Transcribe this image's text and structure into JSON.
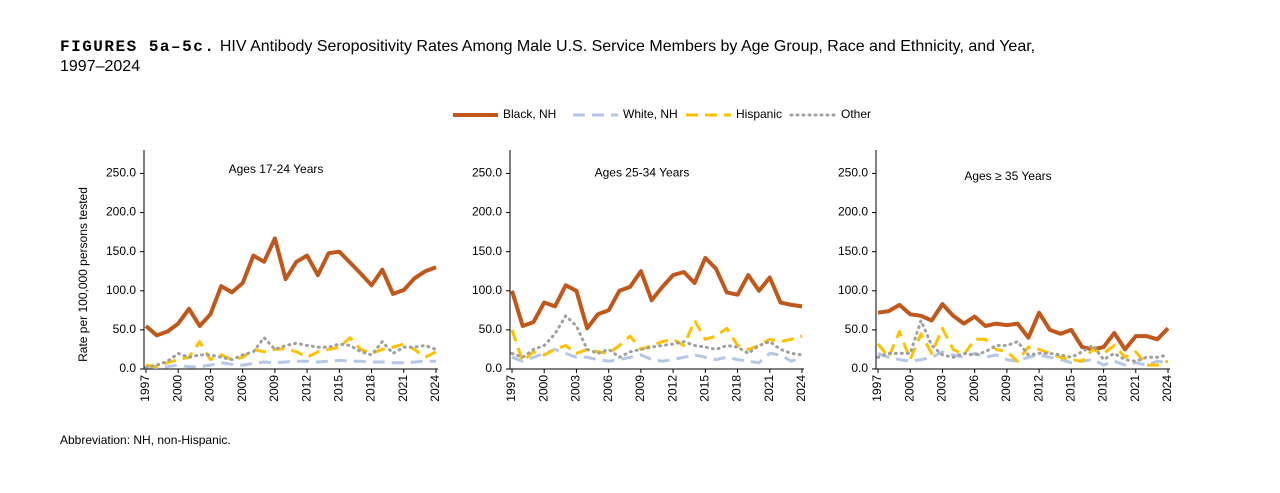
{
  "figure_label": "FIGURES 5a–5c.",
  "title_line_1": "HIV Antibody Seropositivity Rates Among Male U.S. Service Members by Age Group, Race and Ethnicity, and Year,",
  "title_line_2": "1997–2024",
  "footnote": "Abbreviation: NH, non-Hispanic.",
  "chart_data": [
    {
      "type": "line",
      "title": "Ages 17-24 Years",
      "ylabel": "Rate per 100,000 persons tested",
      "x": [
        1997,
        1998,
        1999,
        2000,
        2001,
        2002,
        2003,
        2004,
        2005,
        2006,
        2007,
        2008,
        2009,
        2010,
        2011,
        2012,
        2013,
        2014,
        2015,
        2016,
        2017,
        2018,
        2019,
        2020,
        2021,
        2022,
        2023,
        2024
      ],
      "xlim": [
        1997,
        2024
      ],
      "xticks": [
        1997,
        2000,
        2003,
        2006,
        2009,
        2012,
        2015,
        2018,
        2021,
        2024
      ],
      "ylim": [
        0,
        280
      ],
      "yticks": [
        {
          "value": 0,
          "label": "0.0"
        },
        {
          "value": 50,
          "label": "50.0"
        },
        {
          "value": 100,
          "label": "100.0"
        },
        {
          "value": 150,
          "label": "150.0"
        },
        {
          "value": 200,
          "label": "200.0"
        },
        {
          "value": 250,
          "label": "250.0"
        }
      ],
      "series": [
        {
          "name": "Black, NH",
          "color": "#c0571b",
          "line_style": "solid",
          "values": [
            55,
            43,
            48,
            58,
            77,
            55,
            70,
            106,
            98,
            110,
            145,
            137,
            167,
            115,
            137,
            145,
            120,
            148,
            150,
            136,
            122,
            107,
            127,
            96,
            101,
            116,
            125,
            130
          ]
        },
        {
          "name": "White, NH",
          "color": "#b4c7e7",
          "line_style": "dashed",
          "values": [
            3,
            2,
            3,
            5,
            3,
            3,
            5,
            8,
            6,
            5,
            7,
            9,
            8,
            9,
            10,
            10,
            9,
            10,
            11,
            10,
            10,
            9,
            9,
            8,
            8,
            9,
            10,
            10
          ]
        },
        {
          "name": "Hispanic",
          "color": "#ffc000",
          "line_style": "dashed",
          "values": [
            5,
            3,
            8,
            12,
            15,
            35,
            12,
            18,
            12,
            15,
            25,
            22,
            25,
            26,
            22,
            15,
            22,
            25,
            28,
            40,
            25,
            20,
            25,
            28,
            32,
            25,
            15,
            22
          ]
        },
        {
          "name": "Other",
          "color": "#a0a0a0",
          "line_style": "dotted",
          "values": [
            2,
            5,
            10,
            20,
            15,
            18,
            18,
            15,
            12,
            18,
            22,
            40,
            25,
            30,
            33,
            30,
            28,
            28,
            32,
            30,
            22,
            18,
            35,
            20,
            28,
            28,
            30,
            25
          ]
        }
      ]
    },
    {
      "type": "line",
      "title": "Ages 25-34 Years",
      "x": [
        1997,
        1998,
        1999,
        2000,
        2001,
        2002,
        2003,
        2004,
        2005,
        2006,
        2007,
        2008,
        2009,
        2010,
        2011,
        2012,
        2013,
        2014,
        2015,
        2016,
        2017,
        2018,
        2019,
        2020,
        2021,
        2022,
        2023,
        2024
      ],
      "xlim": [
        1997,
        2024
      ],
      "xticks": [
        1997,
        2000,
        2003,
        2006,
        2009,
        2012,
        2015,
        2018,
        2021,
        2024
      ],
      "ylim": [
        0,
        280
      ],
      "yticks": [
        {
          "value": 0,
          "label": "0.0"
        },
        {
          "value": 50,
          "label": "50.0"
        },
        {
          "value": 100,
          "label": "100.0"
        },
        {
          "value": 150,
          "label": "150.0"
        },
        {
          "value": 200,
          "label": "200.0"
        },
        {
          "value": 250,
          "label": "250.0"
        }
      ],
      "series": [
        {
          "name": "Black, NH",
          "color": "#c0571b",
          "line_style": "solid",
          "values": [
            100,
            55,
            60,
            85,
            80,
            107,
            100,
            52,
            70,
            75,
            100,
            105,
            125,
            88,
            105,
            120,
            124,
            110,
            142,
            128,
            98,
            95,
            120,
            100,
            117,
            85,
            82,
            80
          ]
        },
        {
          "name": "White, NH",
          "color": "#b4c7e7",
          "line_style": "dashed",
          "values": [
            15,
            10,
            15,
            20,
            25,
            20,
            15,
            15,
            12,
            10,
            12,
            15,
            18,
            12,
            10,
            12,
            15,
            18,
            15,
            12,
            15,
            12,
            10,
            8,
            20,
            18,
            10,
            15
          ]
        },
        {
          "name": "Hispanic",
          "color": "#ffc000",
          "line_style": "dashed",
          "values": [
            50,
            10,
            22,
            18,
            25,
            30,
            20,
            25,
            22,
            20,
            30,
            42,
            25,
            30,
            35,
            38,
            30,
            62,
            38,
            42,
            52,
            30,
            25,
            30,
            38,
            35,
            38,
            42
          ]
        },
        {
          "name": "Other",
          "color": "#a0a0a0",
          "line_style": "dotted",
          "values": [
            20,
            15,
            25,
            30,
            45,
            68,
            55,
            25,
            20,
            25,
            15,
            22,
            25,
            28,
            30,
            32,
            35,
            30,
            28,
            25,
            30,
            28,
            20,
            30,
            35,
            25,
            20,
            18
          ]
        }
      ]
    },
    {
      "type": "line",
      "title": "Ages ≥ 35 Years",
      "x": [
        1997,
        1998,
        1999,
        2000,
        2001,
        2002,
        2003,
        2004,
        2005,
        2006,
        2007,
        2008,
        2009,
        2010,
        2011,
        2012,
        2013,
        2014,
        2015,
        2016,
        2017,
        2018,
        2019,
        2020,
        2021,
        2022,
        2023,
        2024
      ],
      "xlim": [
        1997,
        2024
      ],
      "xticks": [
        1997,
        2000,
        2003,
        2006,
        2009,
        2012,
        2015,
        2018,
        2021,
        2024
      ],
      "ylim": [
        0,
        280
      ],
      "yticks": [
        {
          "value": 0,
          "label": "0.0"
        },
        {
          "value": 50,
          "label": "50.0"
        },
        {
          "value": 100,
          "label": "100.0"
        },
        {
          "value": 150,
          "label": "150.0"
        },
        {
          "value": 200,
          "label": "200.0"
        },
        {
          "value": 250,
          "label": "250.0"
        }
      ],
      "series": [
        {
          "name": "Black, NH",
          "color": "#c0571b",
          "line_style": "solid",
          "values": [
            72,
            74,
            82,
            70,
            68,
            62,
            83,
            68,
            58,
            67,
            55,
            58,
            56,
            58,
            40,
            72,
            50,
            45,
            50,
            28,
            25,
            28,
            46,
            25,
            42,
            42,
            38,
            52
          ]
        },
        {
          "name": "White, NH",
          "color": "#b4c7e7",
          "line_style": "dashed",
          "values": [
            20,
            15,
            12,
            10,
            12,
            15,
            22,
            18,
            15,
            20,
            15,
            18,
            12,
            10,
            15,
            18,
            15,
            12,
            8,
            10,
            12,
            5,
            10,
            5,
            8,
            5,
            10,
            8
          ]
        },
        {
          "name": "Hispanic",
          "color": "#ffc000",
          "line_style": "dashed",
          "values": [
            32,
            15,
            48,
            12,
            45,
            20,
            52,
            25,
            18,
            38,
            38,
            25,
            22,
            10,
            28,
            25,
            20,
            15,
            12,
            10,
            25,
            20,
            30,
            15,
            22,
            5,
            5,
            10
          ]
        },
        {
          "name": "Other",
          "color": "#a0a0a0",
          "line_style": "dotted",
          "values": [
            15,
            20,
            20,
            20,
            62,
            30,
            18,
            15,
            20,
            18,
            22,
            30,
            30,
            35,
            18,
            20,
            20,
            18,
            15,
            22,
            30,
            12,
            20,
            12,
            10,
            15,
            15,
            18
          ]
        }
      ]
    }
  ]
}
